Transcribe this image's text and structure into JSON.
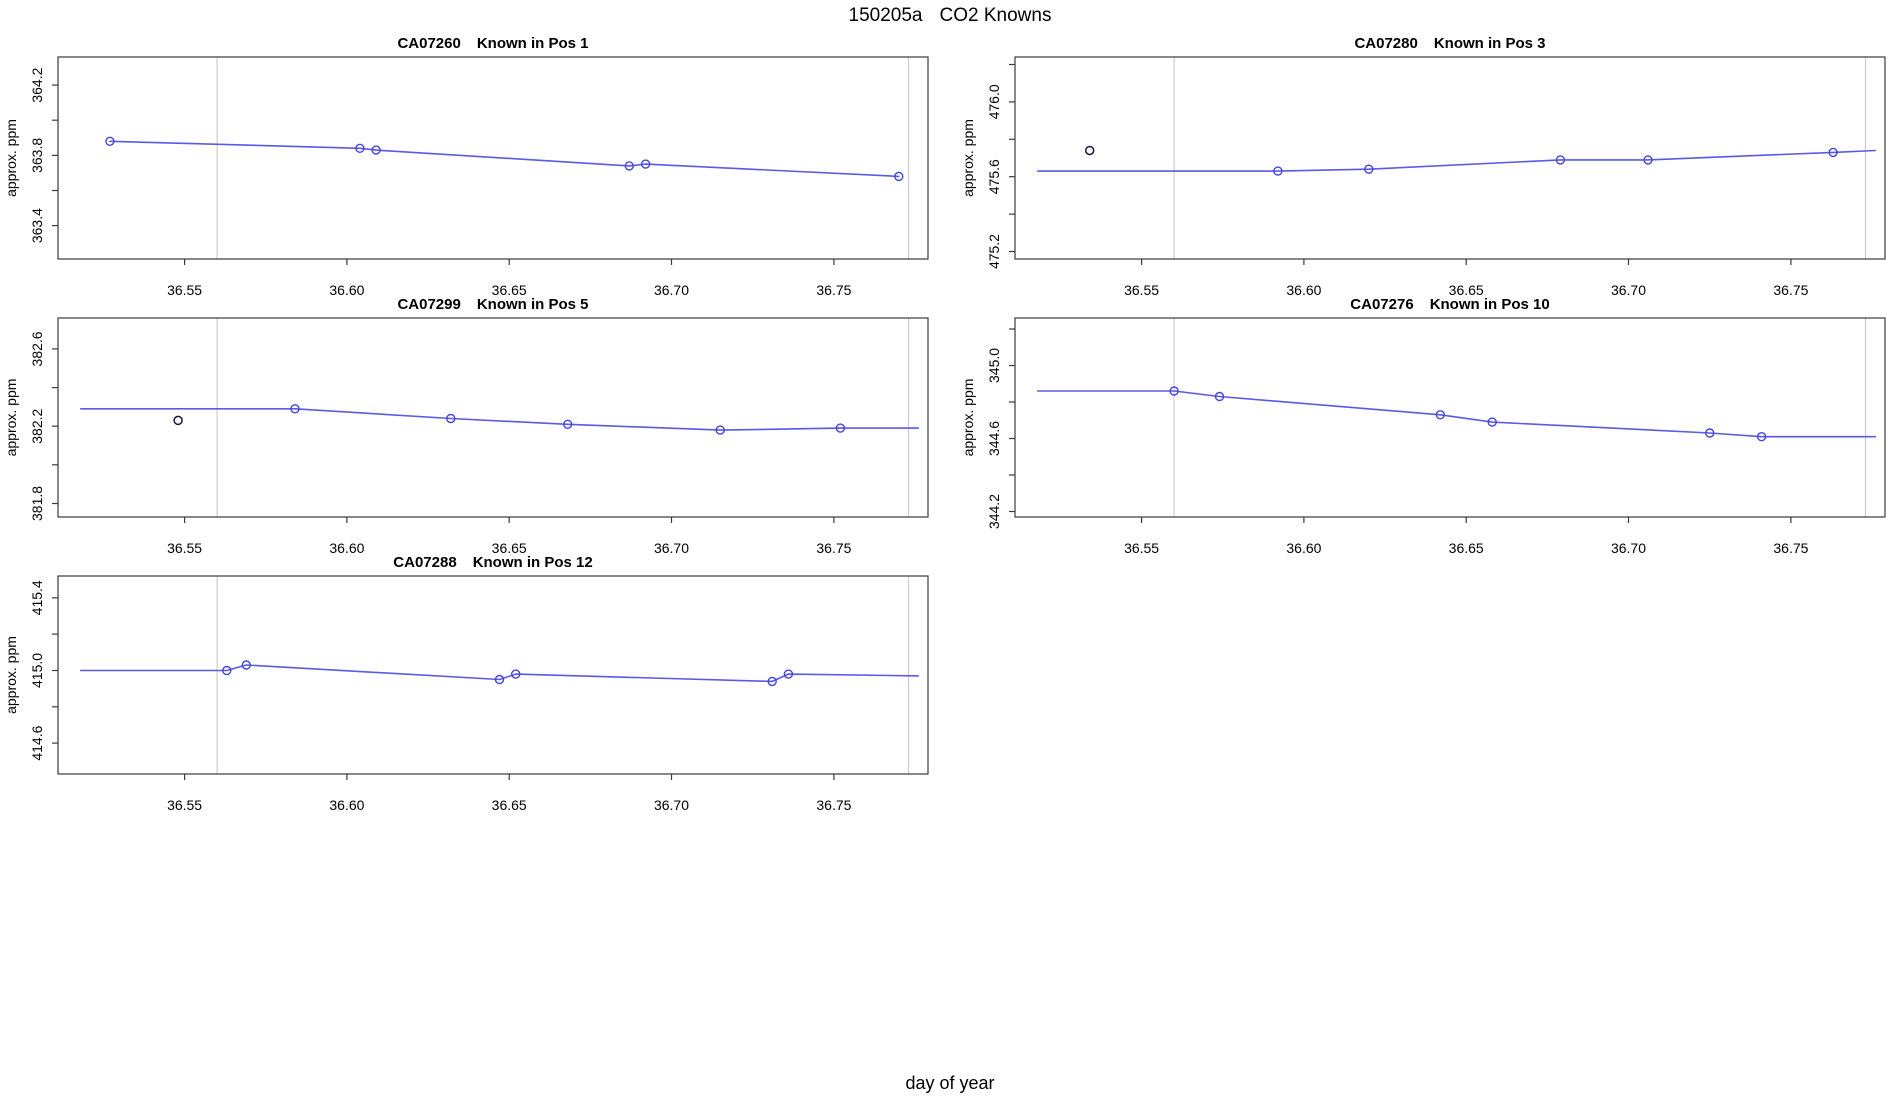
{
  "figure": {
    "title_run_id": "150205a",
    "title_subject": "CO2 Knowns",
    "xlabel": "day of year"
  },
  "colors": {
    "series_line": "#5a5ae6",
    "marker": "#4343dd",
    "outlier_marker": "#16163f",
    "event_line": "#cccccc",
    "panel_border": "#3a3a3a",
    "text": "#000000",
    "background": "#ffffff"
  },
  "chart_data": {
    "type": "line",
    "layout": {
      "rows": 3,
      "cols": 2
    },
    "xlim": [
      36.511,
      36.779
    ],
    "x_ticks": [
      36.55,
      36.6,
      36.65,
      36.7,
      36.75
    ],
    "x_tick_labels": [
      "36.55",
      "36.60",
      "36.65",
      "36.70",
      "36.75"
    ],
    "event_lines_x": [
      36.56,
      36.773
    ],
    "subplots": [
      {
        "sample": "CA07260",
        "position_label": "Known in Pos 1",
        "row": 0,
        "col": 0,
        "ylabel": "approx. ppm",
        "ylim": [
          363.21,
          364.36
        ],
        "y_ticks": [
          363.4,
          363.6,
          363.8,
          364.0,
          364.2
        ],
        "y_tick_labels": [
          "363.4",
          "",
          "363.8",
          "",
          "364.2"
        ],
        "line": [
          [
            36.527,
            363.88
          ],
          [
            36.604,
            363.84
          ],
          [
            36.609,
            363.83
          ],
          [
            36.687,
            363.74
          ],
          [
            36.692,
            363.75
          ],
          [
            36.77,
            363.68
          ]
        ],
        "points": [
          [
            36.527,
            363.88
          ],
          [
            36.604,
            363.84
          ],
          [
            36.609,
            363.83
          ],
          [
            36.687,
            363.74
          ],
          [
            36.692,
            363.75
          ],
          [
            36.77,
            363.68
          ]
        ],
        "outliers": []
      },
      {
        "sample": "CA07280",
        "position_label": "Known in Pos 3",
        "row": 0,
        "col": 1,
        "ylabel": "approx. ppm",
        "ylim": [
          475.16,
          476.24
        ],
        "y_ticks": [
          475.2,
          475.4,
          475.6,
          475.8,
          476.0,
          476.2
        ],
        "y_tick_labels": [
          "475.2",
          "",
          "475.6",
          "",
          "476.0",
          ""
        ],
        "line": [
          [
            36.518,
            475.63
          ],
          [
            36.592,
            475.63
          ],
          [
            36.62,
            475.64
          ],
          [
            36.679,
            475.69
          ],
          [
            36.706,
            475.69
          ],
          [
            36.763,
            475.73
          ],
          [
            36.776,
            475.74
          ]
        ],
        "points": [
          [
            36.592,
            475.63
          ],
          [
            36.62,
            475.64
          ],
          [
            36.679,
            475.69
          ],
          [
            36.706,
            475.69
          ],
          [
            36.763,
            475.73
          ]
        ],
        "outliers": [
          [
            36.534,
            475.74
          ]
        ]
      },
      {
        "sample": "CA07299",
        "position_label": "Known in Pos 5",
        "row": 1,
        "col": 0,
        "ylabel": "approx. ppm",
        "ylim": [
          381.73,
          382.76
        ],
        "y_ticks": [
          381.8,
          382.0,
          382.2,
          382.4,
          382.6
        ],
        "y_tick_labels": [
          "381.8",
          "",
          "382.2",
          "",
          "382.6"
        ],
        "line": [
          [
            36.518,
            382.29
          ],
          [
            36.584,
            382.29
          ],
          [
            36.632,
            382.24
          ],
          [
            36.668,
            382.21
          ],
          [
            36.715,
            382.18
          ],
          [
            36.752,
            382.19
          ],
          [
            36.776,
            382.19
          ]
        ],
        "points": [
          [
            36.584,
            382.29
          ],
          [
            36.632,
            382.24
          ],
          [
            36.668,
            382.21
          ],
          [
            36.715,
            382.18
          ],
          [
            36.752,
            382.19
          ]
        ],
        "outliers": [
          [
            36.548,
            382.23
          ]
        ]
      },
      {
        "sample": "CA07276",
        "position_label": "Known in Pos 10",
        "row": 1,
        "col": 1,
        "ylabel": "approx. ppm",
        "ylim": [
          344.17,
          345.26
        ],
        "y_ticks": [
          344.2,
          344.4,
          344.6,
          344.8,
          345.0,
          345.2
        ],
        "y_tick_labels": [
          "344.2",
          "",
          "344.6",
          "",
          "345.0",
          ""
        ],
        "line": [
          [
            36.518,
            344.86
          ],
          [
            36.56,
            344.86
          ],
          [
            36.574,
            344.83
          ],
          [
            36.642,
            344.73
          ],
          [
            36.658,
            344.69
          ],
          [
            36.725,
            344.63
          ],
          [
            36.741,
            344.61
          ],
          [
            36.776,
            344.61
          ]
        ],
        "points": [
          [
            36.56,
            344.86
          ],
          [
            36.574,
            344.83
          ],
          [
            36.642,
            344.73
          ],
          [
            36.658,
            344.69
          ],
          [
            36.725,
            344.63
          ],
          [
            36.741,
            344.61
          ]
        ],
        "outliers": []
      },
      {
        "sample": "CA07288",
        "position_label": "Known in Pos 12",
        "row": 2,
        "col": 0,
        "ylabel": "approx. ppm",
        "ylim": [
          414.43,
          415.52
        ],
        "y_ticks": [
          414.6,
          414.8,
          415.0,
          415.2,
          415.4
        ],
        "y_tick_labels": [
          "414.6",
          "",
          "415.0",
          "",
          "415.4"
        ],
        "line": [
          [
            36.518,
            415.0
          ],
          [
            36.563,
            415.0
          ],
          [
            36.569,
            415.03
          ],
          [
            36.647,
            414.95
          ],
          [
            36.652,
            414.98
          ],
          [
            36.731,
            414.94
          ],
          [
            36.736,
            414.98
          ],
          [
            36.776,
            414.97
          ]
        ],
        "points": [
          [
            36.563,
            415.0
          ],
          [
            36.569,
            415.03
          ],
          [
            36.647,
            414.95
          ],
          [
            36.652,
            414.98
          ],
          [
            36.731,
            414.94
          ],
          [
            36.736,
            414.98
          ]
        ],
        "outliers": []
      }
    ]
  }
}
